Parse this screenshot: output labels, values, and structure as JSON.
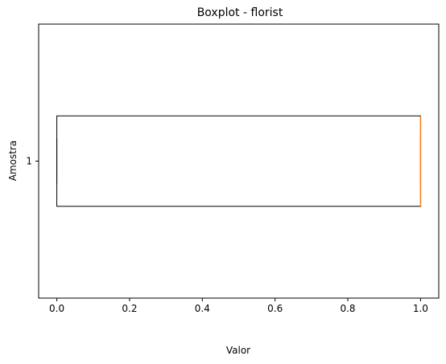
{
  "chart_data": {
    "type": "boxplot",
    "orientation": "horizontal",
    "title": "Boxplot - florist",
    "xlabel": "Valor",
    "ylabel": "Amostra",
    "xlim": [
      -0.05,
      1.05
    ],
    "x_ticks": [
      0.0,
      0.2,
      0.4,
      0.6,
      0.8,
      1.0
    ],
    "x_tick_labels": [
      "0.0",
      "0.2",
      "0.4",
      "0.6",
      "0.8",
      "1.0"
    ],
    "categories": [
      "1"
    ],
    "boxes": [
      {
        "category": "1",
        "whisker_low": 0.0,
        "q1": 0.0,
        "median": 1.0,
        "q3": 1.0,
        "whisker_high": 1.0
      }
    ],
    "grid": false,
    "colors": {
      "box": "#000000",
      "median": "#ff7f0e"
    }
  }
}
